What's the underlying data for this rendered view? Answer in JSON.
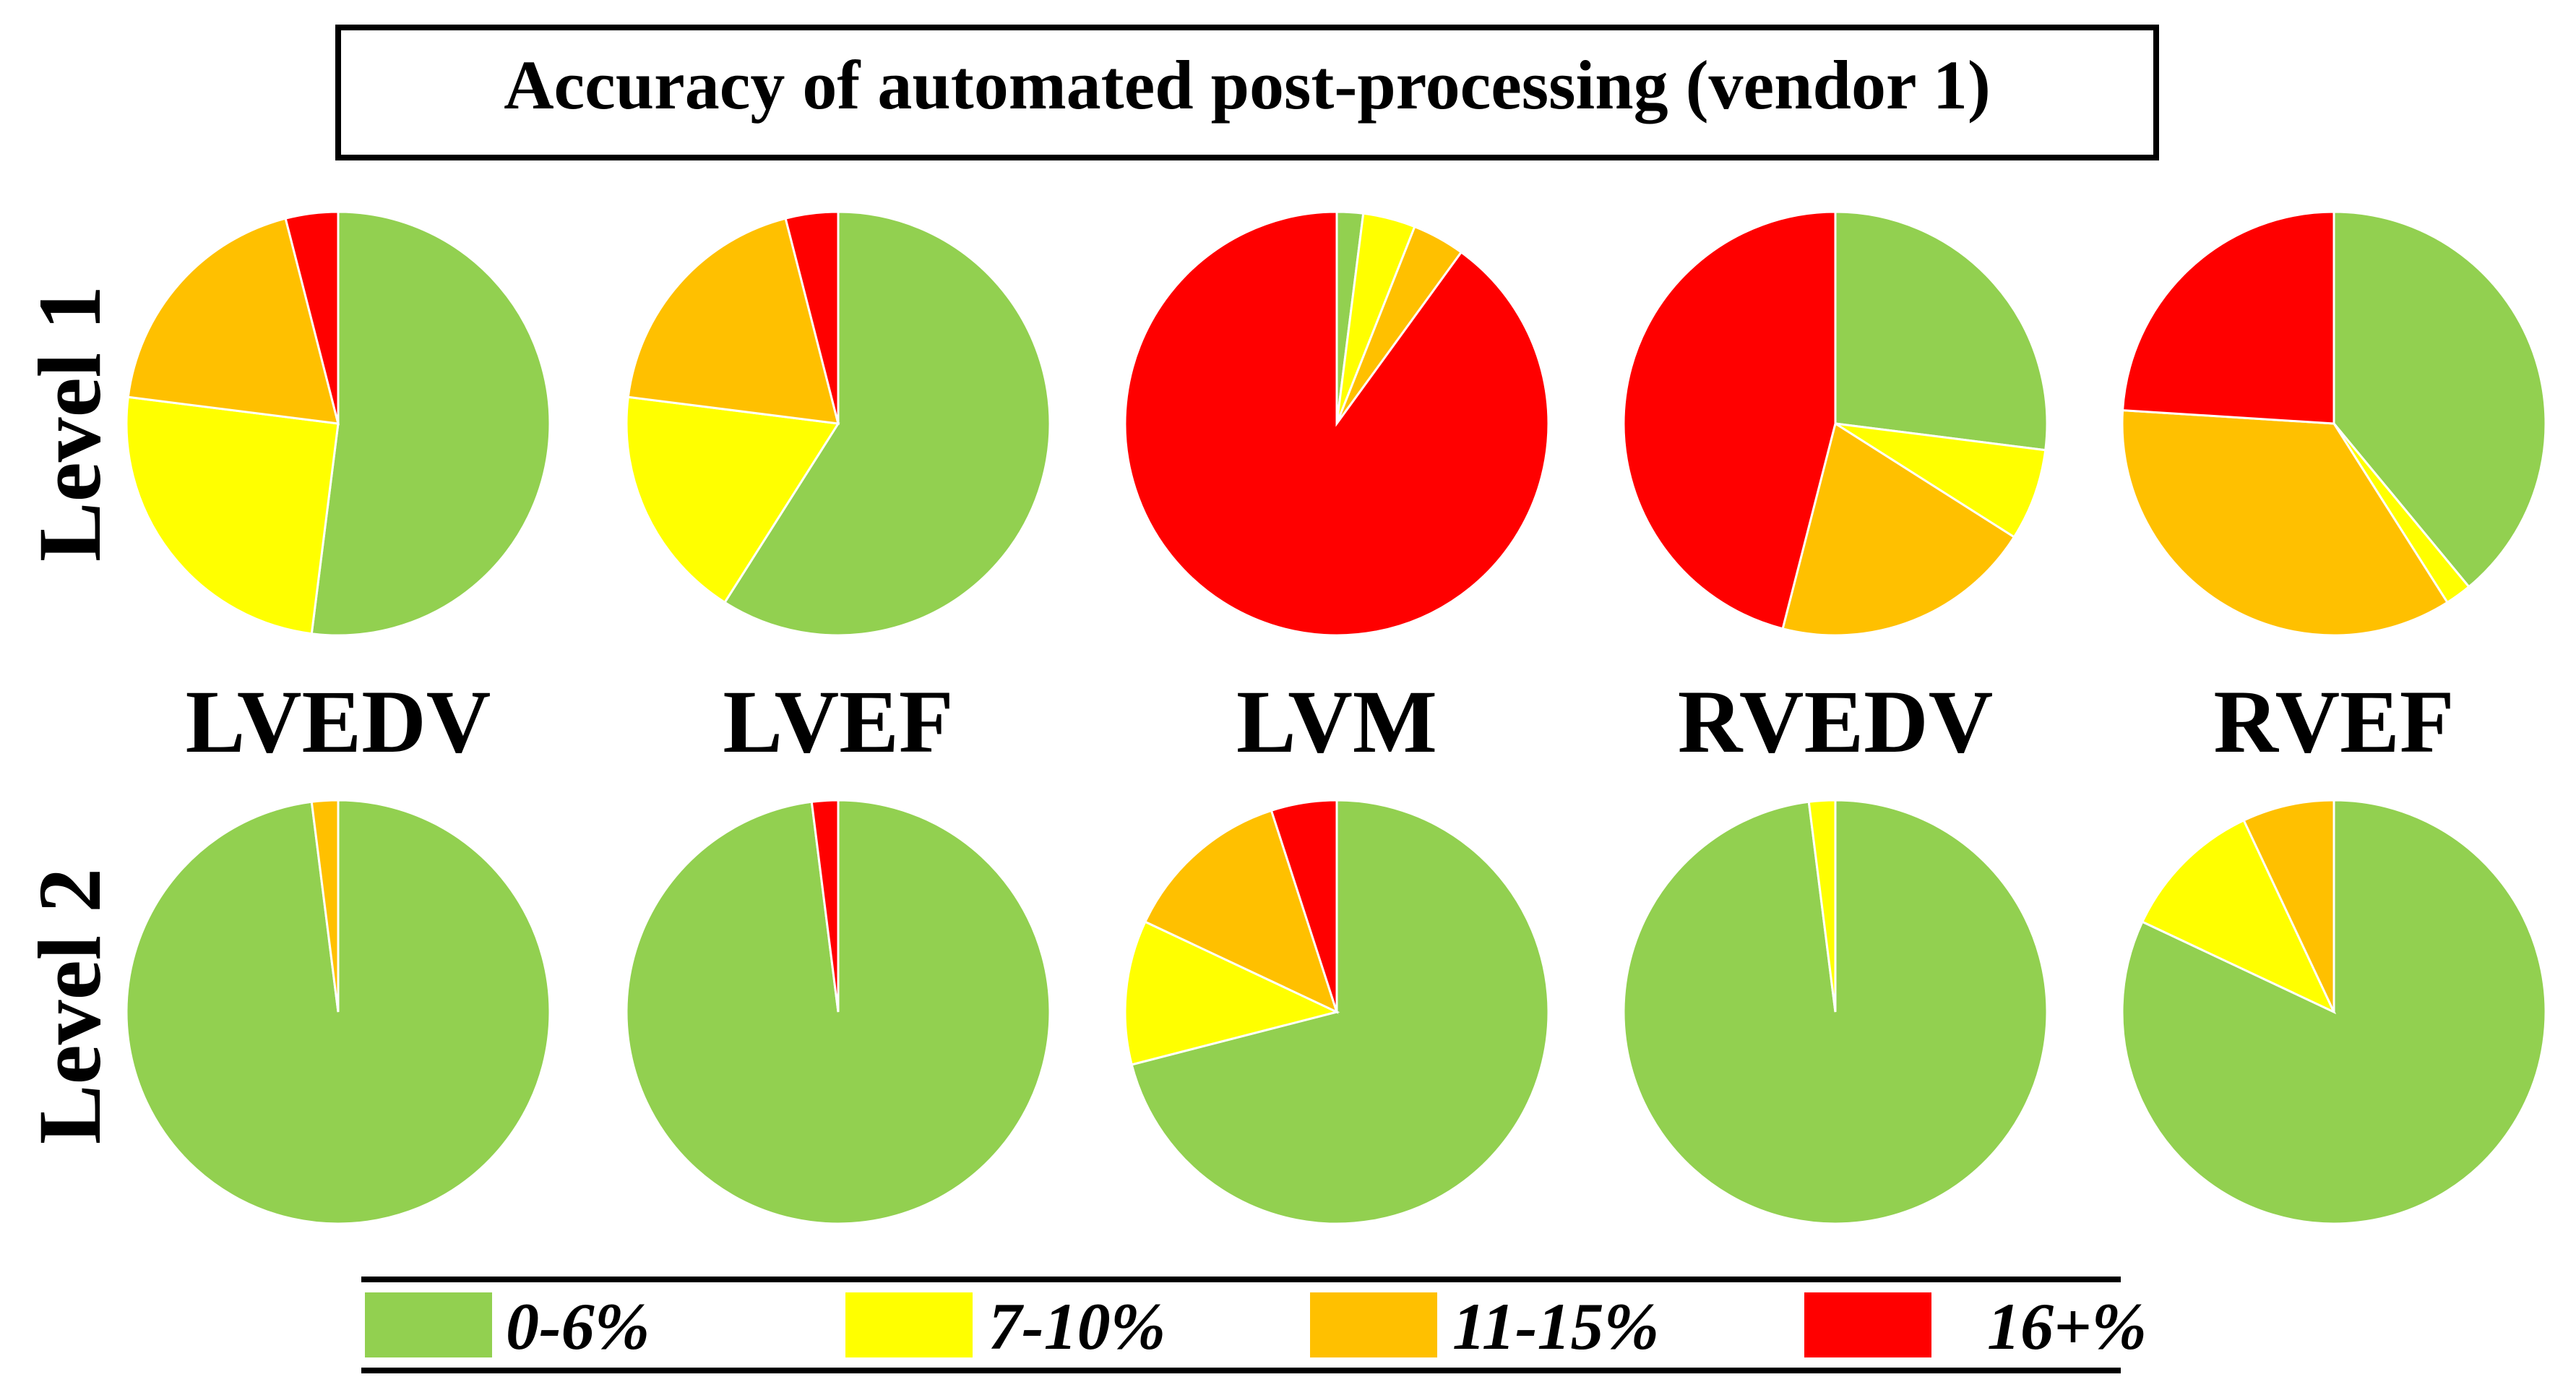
{
  "title": "Accuracy of automated post-processing (vendor 1)",
  "chart_data": {
    "type": "pie",
    "title": "Accuracy of automated post-processing (vendor 1)",
    "categories": [
      "0-6%",
      "7-10%",
      "11-15%",
      "16+%"
    ],
    "colors": [
      "#92d050",
      "#ffff00",
      "#ffc000",
      "#ff0000"
    ],
    "columns": [
      "LVEDV",
      "LVEF",
      "LVM",
      "RVEDV",
      "RVEF"
    ],
    "rows": [
      "Level 1",
      "Level 2"
    ],
    "pies": [
      {
        "row": "Level 1",
        "column": "LVEDV",
        "values": [
          52,
          25,
          19,
          4
        ]
      },
      {
        "row": "Level 1",
        "column": "LVEF",
        "values": [
          59,
          18,
          19,
          4
        ]
      },
      {
        "row": "Level 1",
        "column": "LVM",
        "values": [
          2,
          4,
          4,
          90
        ]
      },
      {
        "row": "Level 1",
        "column": "RVEDV",
        "values": [
          27,
          7,
          20,
          46
        ]
      },
      {
        "row": "Level 1",
        "column": "RVEF",
        "values": [
          39,
          2,
          35,
          24
        ]
      },
      {
        "row": "Level 2",
        "column": "LVEDV",
        "values": [
          98,
          0,
          2,
          0
        ]
      },
      {
        "row": "Level 2",
        "column": "LVEF",
        "values": [
          98,
          0,
          0,
          2
        ]
      },
      {
        "row": "Level 2",
        "column": "LVM",
        "values": [
          71,
          11,
          13,
          5
        ]
      },
      {
        "row": "Level 2",
        "column": "RVEDV",
        "values": [
          98,
          2,
          0,
          0
        ]
      },
      {
        "row": "Level 2",
        "column": "RVEF",
        "values": [
          82,
          11,
          7,
          0
        ]
      }
    ],
    "legend_position": "bottom"
  }
}
